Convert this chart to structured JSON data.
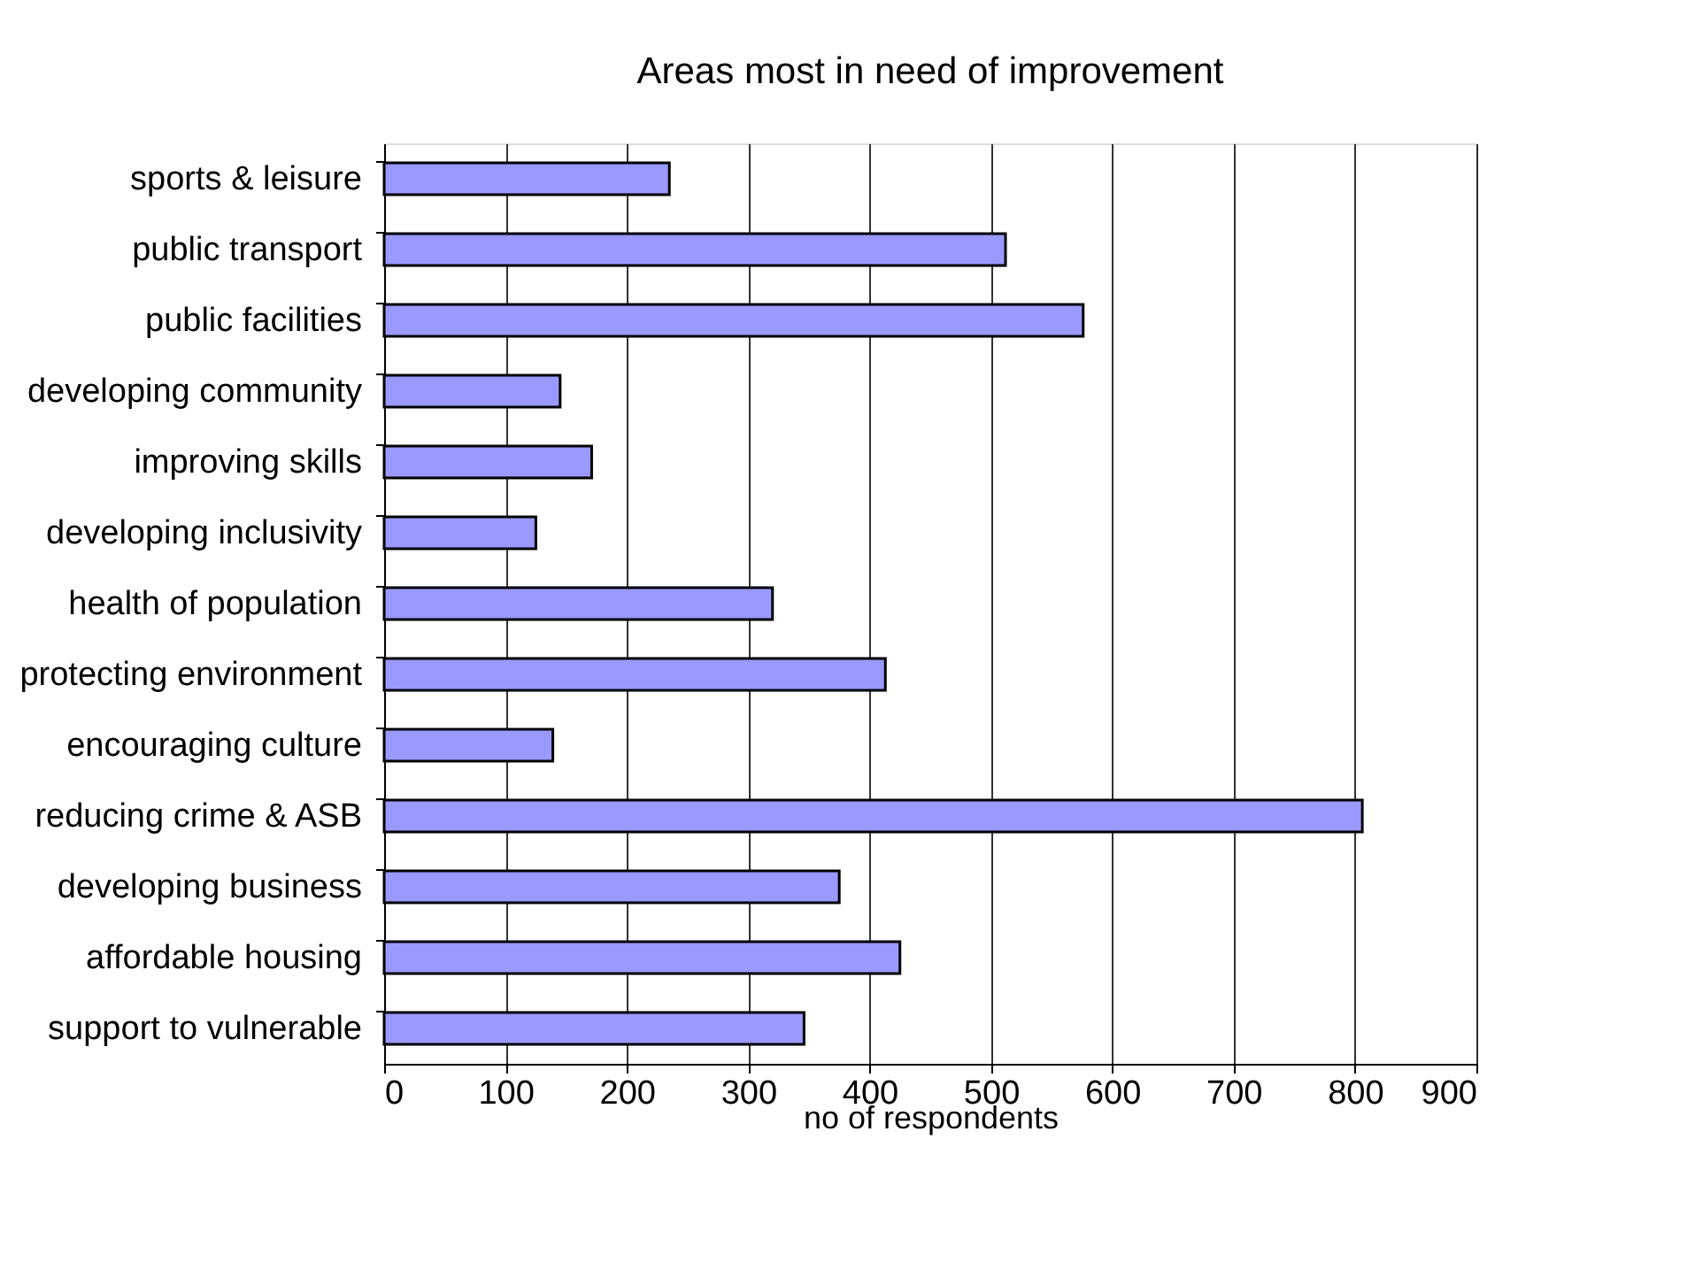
{
  "chart_data": {
    "type": "bar",
    "orientation": "horizontal",
    "title": "Areas most in need of improvement",
    "xlabel": "no of respondents",
    "categories": [
      "sports & leisure",
      "public transport",
      "public facilities",
      "developing community",
      "improving skills",
      "developing inclusivity",
      "health of population",
      "protecting environment",
      "encouraging culture",
      "reducing crime & ASB",
      "developing business",
      "affordable housing",
      "support to vulnerable"
    ],
    "values": [
      235,
      512,
      576,
      145,
      171,
      125,
      320,
      413,
      139,
      806,
      375,
      425,
      346
    ],
    "color": "#9999ff",
    "xlim": [
      0,
      900
    ],
    "xticks": [
      0,
      100,
      200,
      300,
      400,
      500,
      600,
      700,
      800,
      900
    ],
    "grid": "x"
  }
}
